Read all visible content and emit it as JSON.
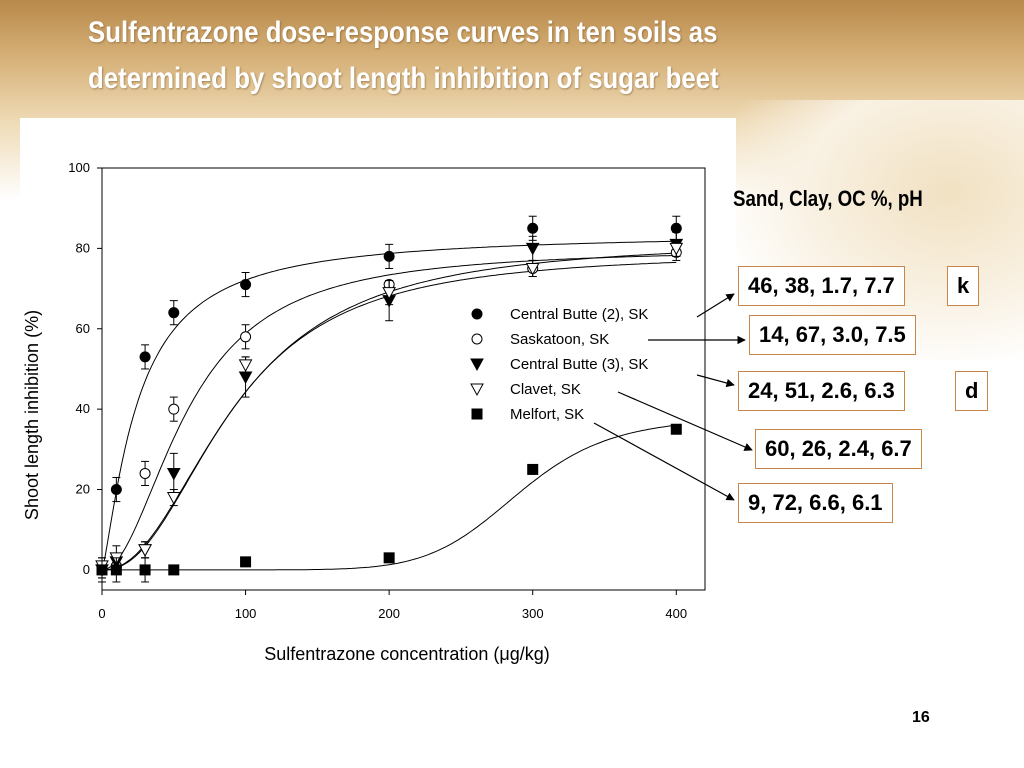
{
  "slide": {
    "title_line1": "Sulfentrazone dose-response curves in ten soils as",
    "title_line2": "determined by shoot length inhibition of sugar beet",
    "page_number": "16"
  },
  "soil_properties": {
    "header": "Sand, Clay, OC %, pH",
    "rows": [
      {
        "values": "46, 38, 1.7, 7.7",
        "tag": "k",
        "series": "Central Butte (2), SK"
      },
      {
        "values": "14, 67, 3.0, 7.5",
        "tag": "",
        "series": "Saskatoon, SK"
      },
      {
        "values": "24, 51, 2.6, 6.3",
        "tag": "d",
        "series": "Central Butte (3), SK"
      },
      {
        "values": "60, 26, 2.4, 6.7",
        "tag": "",
        "series": "Clavet, SK"
      },
      {
        "values": "9, 72, 6.6, 6.1",
        "tag": "",
        "series": "Melfort, SK"
      }
    ]
  },
  "colors": {
    "ink": "#000000",
    "box_border": "#c9864a",
    "title_text": "#ffffff",
    "background_brown": "#b8894a"
  },
  "chart_data": {
    "type": "scatter",
    "title": "",
    "xlabel_prefix": "Sulfentrazone concentration (",
    "xlabel_unit": "μg/kg",
    "xlabel_suffix": ")",
    "ylabel": "Shoot length inhibition (%)",
    "xlim": [
      0,
      420
    ],
    "ylim": [
      -5,
      100
    ],
    "xticks": [
      0,
      100,
      200,
      300,
      400
    ],
    "yticks": [
      0,
      20,
      40,
      60,
      80,
      100
    ],
    "grid": false,
    "legend_position": "center-right",
    "series": [
      {
        "name": "Central Butte (2), SK",
        "marker": "filled-circle",
        "points": [
          {
            "x": 0,
            "y": 0,
            "err": 2
          },
          {
            "x": 10,
            "y": 20,
            "err": 3
          },
          {
            "x": 30,
            "y": 53,
            "err": 3
          },
          {
            "x": 50,
            "y": 64,
            "err": 3
          },
          {
            "x": 100,
            "y": 71,
            "err": 3
          },
          {
            "x": 200,
            "y": 78,
            "err": 3
          },
          {
            "x": 300,
            "y": 85,
            "err": 3
          },
          {
            "x": 400,
            "y": 85,
            "err": 3
          }
        ],
        "curve": {
          "top": 84,
          "ec50": 25,
          "slope": 1.3
        }
      },
      {
        "name": "Saskatoon, SK",
        "marker": "open-circle",
        "points": [
          {
            "x": 0,
            "y": 0,
            "err": 2
          },
          {
            "x": 10,
            "y": 1,
            "err": 2
          },
          {
            "x": 30,
            "y": 24,
            "err": 3
          },
          {
            "x": 50,
            "y": 40,
            "err": 3
          },
          {
            "x": 100,
            "y": 58,
            "err": 3
          },
          {
            "x": 200,
            "y": 71,
            "err": 0
          },
          {
            "x": 300,
            "y": 75,
            "err": 2
          },
          {
            "x": 400,
            "y": 79,
            "err": 2
          }
        ],
        "curve": {
          "top": 80,
          "ec50": 60,
          "slope": 2.0
        }
      },
      {
        "name": "Central Butte (3), SK",
        "marker": "filled-triangle-down",
        "points": [
          {
            "x": 0,
            "y": 0,
            "err": 2
          },
          {
            "x": 10,
            "y": 2,
            "err": 2
          },
          {
            "x": 30,
            "y": 5,
            "err": 2
          },
          {
            "x": 50,
            "y": 24,
            "err": 5
          },
          {
            "x": 100,
            "y": 48,
            "err": 5
          },
          {
            "x": 200,
            "y": 67,
            "err": 5
          },
          {
            "x": 300,
            "y": 80,
            "err": 3
          },
          {
            "x": 400,
            "y": 81,
            "err": 3
          }
        ],
        "curve": {
          "top": 79,
          "ec50": 90,
          "slope": 2.3
        }
      },
      {
        "name": "Clavet, SK",
        "marker": "open-triangle-down",
        "points": [
          {
            "x": 0,
            "y": 1,
            "err": 2
          },
          {
            "x": 10,
            "y": 3,
            "err": 3
          },
          {
            "x": 30,
            "y": 5,
            "err": 2
          },
          {
            "x": 50,
            "y": 18,
            "err": 2
          },
          {
            "x": 100,
            "y": 51,
            "err": 2
          },
          {
            "x": 200,
            "y": 69,
            "err": 3
          },
          {
            "x": 300,
            "y": 75,
            "err": 2
          },
          {
            "x": 400,
            "y": 80,
            "err": 2
          }
        ],
        "curve": {
          "top": 82,
          "ec50": 93,
          "slope": 2.2
        }
      },
      {
        "name": "Melfort, SK",
        "marker": "filled-square",
        "points": [
          {
            "x": 0,
            "y": 0,
            "err": 3
          },
          {
            "x": 10,
            "y": 0,
            "err": 3
          },
          {
            "x": 30,
            "y": 0,
            "err": 3
          },
          {
            "x": 50,
            "y": 0,
            "err": 0
          },
          {
            "x": 100,
            "y": 2,
            "err": 0
          },
          {
            "x": 200,
            "y": 3,
            "err": 0
          },
          {
            "x": 300,
            "y": 25,
            "err": 0
          },
          {
            "x": 400,
            "y": 35,
            "err": 0
          }
        ],
        "curve": {
          "top": 38,
          "ec50": 290,
          "slope": 9
        }
      }
    ]
  }
}
